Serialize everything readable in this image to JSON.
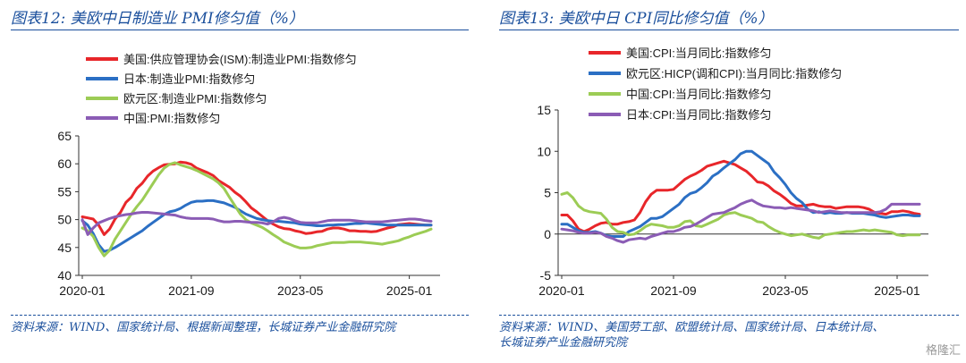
{
  "titles": {
    "left": "图表12:  美欧中日制造业 PMI修匀值（%）",
    "right": "图表13:  美欧中日 CPI同比修匀值（%）"
  },
  "sources": {
    "left": "资料来源：WIND、国家统计局、根据新闻整理，长城证券产业金融研究院",
    "right": "资料来源：WIND、美国劳工部、欧盟统计局、国家统计局、日本统计局、长城证券产业金融研究院"
  },
  "watermark": "格隆汇",
  "chart_data": [
    {
      "type": "line",
      "title": "美欧中日制造业 PMI修匀值（%）",
      "xlabel": "",
      "ylabel": "",
      "x_tick_labels": [
        "2020-01",
        "2021-09",
        "2023-05",
        "2025-01"
      ],
      "y_ticks": [
        40,
        45,
        50,
        55,
        60,
        65
      ],
      "ylim": [
        40,
        65
      ],
      "x_start": "2020-01",
      "x_end": "2025-05",
      "frequency": "monthly",
      "legend_position": "top",
      "series": [
        {
          "name": "美国:供应管理协会(ISM):制造业PMI:指数修匀",
          "color": "#e8262a",
          "values": [
            50.5,
            50.3,
            50.1,
            49.0,
            47.3,
            48.3,
            50.1,
            51.3,
            53.1,
            54.0,
            55.6,
            56.5,
            57.8,
            58.7,
            59.3,
            59.8,
            59.9,
            60.0,
            60.3,
            60.2,
            59.9,
            59.2,
            58.8,
            58.4,
            57.9,
            57.0,
            56.4,
            55.8,
            54.9,
            54.2,
            53.2,
            52.1,
            51.4,
            50.6,
            49.8,
            49.2,
            48.7,
            48.4,
            48.3,
            48.0,
            47.8,
            47.5,
            47.6,
            47.8,
            47.9,
            48.3,
            48.5,
            48.5,
            48.3,
            48.0,
            48.0,
            47.9,
            47.9,
            47.8,
            47.9,
            48.2,
            48.5,
            48.7,
            49.1,
            49.2,
            49.3,
            49.2,
            49.1,
            49.0,
            49.0
          ]
        },
        {
          "name": "日本:制造业PMI:指数修匀",
          "color": "#2b6fc4",
          "values": [
            49.8,
            49.0,
            47.5,
            45.5,
            44.3,
            44.5,
            45.0,
            45.6,
            46.2,
            46.8,
            47.4,
            48.0,
            48.8,
            49.5,
            50.2,
            50.9,
            51.4,
            51.6,
            52.0,
            52.6,
            53.1,
            53.3,
            53.3,
            53.4,
            53.4,
            53.2,
            53.0,
            52.6,
            52.2,
            51.6,
            51.0,
            50.6,
            50.2,
            50.0,
            49.8,
            49.7,
            49.7,
            49.6,
            49.5,
            49.4,
            49.2,
            49.1,
            49.0,
            48.9,
            48.9,
            49.0,
            49.0,
            49.1,
            49.1,
            49.2,
            49.3,
            49.3,
            49.4,
            49.3,
            49.2,
            49.1,
            49.0,
            49.0,
            49.0,
            49.0,
            49.0,
            49.0,
            49.0,
            49.0,
            49.0
          ]
        },
        {
          "name": "欧元区:制造业PMI:指数修匀",
          "color": "#9ccc55",
          "values": [
            48.5,
            48.0,
            47.0,
            45.0,
            43.5,
            44.5,
            46.5,
            48.0,
            49.5,
            51.0,
            52.3,
            53.5,
            55.0,
            56.5,
            58.0,
            59.2,
            59.9,
            60.2,
            59.8,
            59.5,
            59.2,
            58.8,
            58.3,
            57.8,
            57.3,
            56.6,
            55.6,
            54.0,
            52.5,
            51.0,
            50.0,
            49.4,
            49.0,
            48.6,
            48.0,
            47.3,
            46.7,
            46.0,
            45.6,
            45.2,
            44.9,
            44.9,
            45.0,
            45.3,
            45.5,
            45.7,
            45.9,
            45.9,
            45.9,
            46.0,
            46.0,
            46.0,
            45.9,
            45.8,
            45.7,
            45.6,
            45.8,
            46.0,
            46.2,
            46.6,
            46.9,
            47.3,
            47.6,
            47.9,
            48.3
          ]
        },
        {
          "name": "中国:PMI:指数修匀",
          "color": "#8b5cb5",
          "values": [
            50.0,
            47.3,
            48.5,
            49.4,
            49.8,
            50.2,
            50.5,
            50.7,
            50.9,
            51.0,
            51.2,
            51.3,
            51.3,
            51.2,
            51.1,
            51.0,
            50.9,
            50.8,
            50.5,
            50.3,
            50.2,
            50.2,
            50.2,
            50.2,
            50.1,
            49.8,
            49.6,
            49.6,
            49.7,
            49.7,
            49.6,
            49.5,
            49.5,
            49.4,
            49.2,
            49.6,
            50.2,
            50.4,
            50.2,
            49.8,
            49.5,
            49.4,
            49.4,
            49.4,
            49.6,
            49.8,
            49.9,
            49.9,
            49.9,
            49.9,
            49.8,
            49.7,
            49.6,
            49.6,
            49.6,
            49.6,
            49.7,
            49.8,
            49.9,
            50.0,
            50.1,
            50.1,
            50.0,
            49.8,
            49.7
          ]
        }
      ]
    },
    {
      "type": "line",
      "title": "美欧中日 CPI同比修匀值（%）",
      "xlabel": "",
      "ylabel": "",
      "x_tick_labels": [
        "2020-01",
        "2021-09",
        "2023-05",
        "2025-01"
      ],
      "y_ticks": [
        -5,
        0,
        5,
        10,
        15
      ],
      "ylim": [
        -5,
        15
      ],
      "x_start": "2020-01",
      "x_end": "2025-05",
      "frequency": "monthly",
      "legend_position": "top",
      "series": [
        {
          "name": "美国:CPI:当月同比:指数修匀",
          "color": "#e8262a",
          "values": [
            2.3,
            2.3,
            1.6,
            0.6,
            0.3,
            0.6,
            1.0,
            1.3,
            1.4,
            1.2,
            1.2,
            1.4,
            1.5,
            1.7,
            2.6,
            3.9,
            4.8,
            5.3,
            5.3,
            5.3,
            5.4,
            6.0,
            6.6,
            7.0,
            7.3,
            7.7,
            8.2,
            8.4,
            8.6,
            8.8,
            8.6,
            8.4,
            8.0,
            7.6,
            7.0,
            6.3,
            6.2,
            5.8,
            5.2,
            4.8,
            4.3,
            3.7,
            3.4,
            3.4,
            3.5,
            3.6,
            3.4,
            3.3,
            3.3,
            3.1,
            3.2,
            3.3,
            3.3,
            3.3,
            3.2,
            3.0,
            2.6,
            2.5,
            2.4,
            2.7,
            2.7,
            2.8,
            2.7,
            2.5,
            2.4
          ]
        },
        {
          "name": "欧元区:HICP(调和CPI):当月同比:指数修匀",
          "color": "#2b6fc4",
          "values": [
            1.2,
            1.2,
            0.8,
            0.4,
            0.2,
            0.2,
            0.3,
            0.1,
            -0.2,
            -0.3,
            -0.3,
            -0.3,
            0.3,
            0.6,
            0.9,
            1.4,
            1.9,
            1.9,
            2.1,
            2.6,
            3.1,
            3.6,
            4.4,
            4.9,
            5.1,
            5.6,
            6.2,
            7.0,
            7.4,
            8.0,
            8.5,
            9.0,
            9.7,
            10.0,
            10.0,
            9.5,
            9.0,
            8.5,
            7.5,
            6.8,
            6.0,
            5.0,
            4.3,
            3.8,
            3.0,
            2.6,
            2.7,
            2.5,
            2.6,
            2.5,
            2.5,
            2.6,
            2.5,
            2.5,
            2.5,
            2.4,
            2.3,
            2.1,
            2.0,
            2.1,
            2.2,
            2.3,
            2.3,
            2.2,
            2.2
          ]
        },
        {
          "name": "中国:CPI:当月同比:指数修匀",
          "color": "#9ccc55",
          "values": [
            4.8,
            5.0,
            4.4,
            3.4,
            2.9,
            2.7,
            2.6,
            2.5,
            1.8,
            0.8,
            0.3,
            0.2,
            -0.1,
            0.0,
            0.4,
            0.9,
            1.2,
            1.1,
            1.0,
            0.8,
            0.8,
            1.0,
            1.5,
            1.6,
            1.0,
            0.9,
            1.2,
            1.5,
            1.8,
            2.3,
            2.5,
            2.6,
            2.3,
            2.1,
            1.9,
            1.5,
            1.4,
            0.9,
            0.5,
            0.2,
            0.0,
            -0.2,
            -0.1,
            0.0,
            -0.2,
            -0.4,
            -0.5,
            -0.1,
            0.0,
            0.1,
            0.2,
            0.3,
            0.3,
            0.4,
            0.5,
            0.4,
            0.5,
            0.4,
            0.3,
            0.2,
            -0.1,
            -0.2,
            -0.1,
            -0.1,
            -0.1
          ]
        },
        {
          "name": "日本:CPI:当月同比:指数修匀",
          "color": "#8b5cb5",
          "values": [
            0.6,
            0.5,
            0.4,
            0.2,
            0.1,
            0.1,
            0.2,
            0.1,
            -0.3,
            -0.5,
            -0.8,
            -1.0,
            -0.7,
            -0.6,
            -0.5,
            -0.6,
            -0.3,
            -0.1,
            0.1,
            0.3,
            0.3,
            0.5,
            0.8,
            0.9,
            1.2,
            1.6,
            2.0,
            2.4,
            2.5,
            2.6,
            2.9,
            3.2,
            3.6,
            3.9,
            4.1,
            3.7,
            3.4,
            3.3,
            3.2,
            3.2,
            3.1,
            3.2,
            3.1,
            3.0,
            2.9,
            2.8,
            2.6,
            2.7,
            2.8,
            2.7,
            2.6,
            2.6,
            2.6,
            2.6,
            2.6,
            2.6,
            2.6,
            2.7,
            3.0,
            3.6,
            3.6,
            3.6,
            3.6,
            3.6,
            3.6
          ]
        }
      ]
    }
  ]
}
